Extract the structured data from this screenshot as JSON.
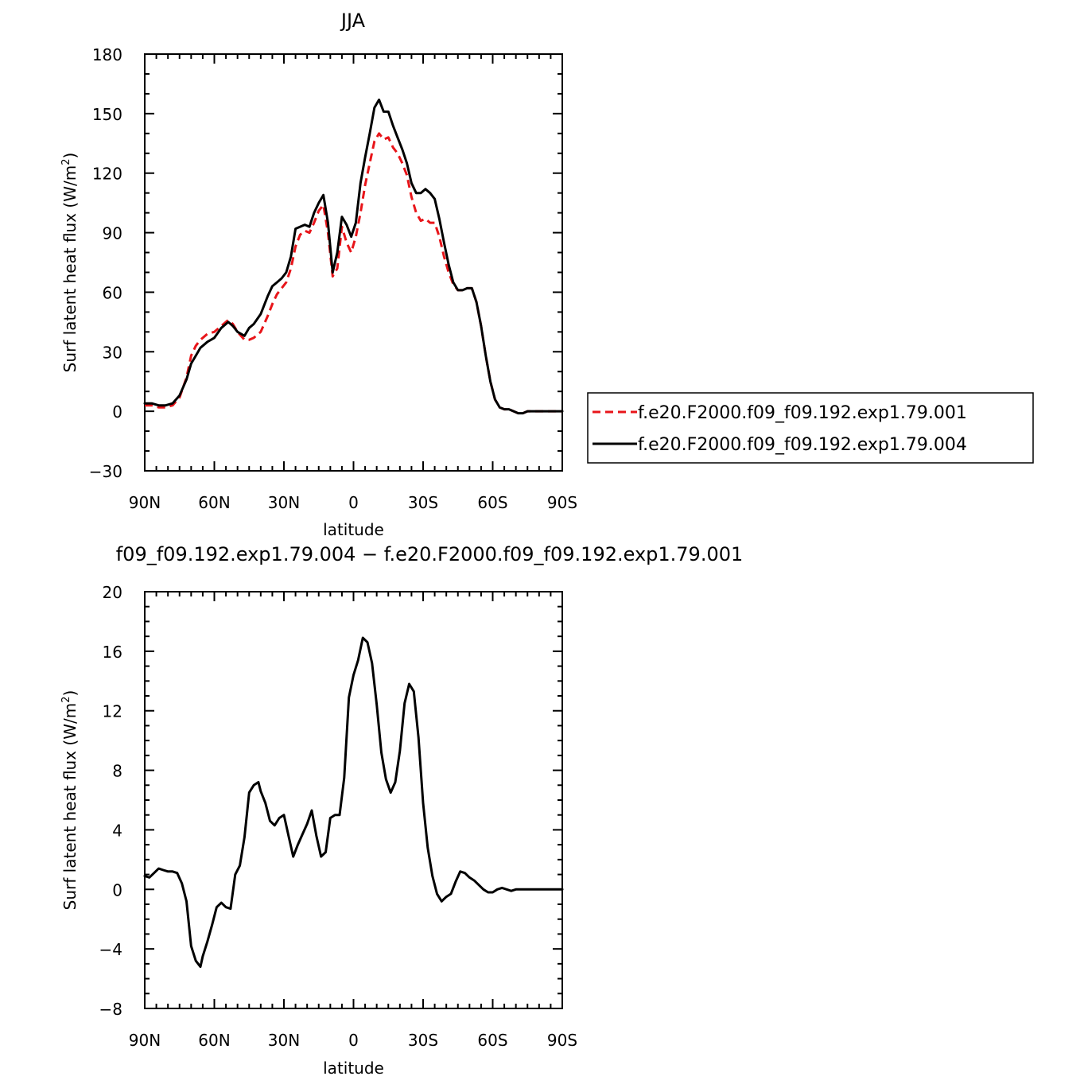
{
  "chart_data": [
    {
      "type": "line",
      "title": "JJA",
      "xlabel": "latitude",
      "ylabel_main": "Surf latent heat flux (W/m",
      "ylabel_sup": "2",
      "ylabel_close": ")",
      "xlim": [
        90,
        -90
      ],
      "ylim": [
        -30,
        180
      ],
      "xticks": [
        90,
        60,
        30,
        0,
        -30,
        -60,
        -90
      ],
      "xtick_labels": [
        "90N",
        "60N",
        "30N",
        "0",
        "30S",
        "60S",
        "90S"
      ],
      "yticks": [
        -30,
        0,
        30,
        60,
        90,
        120,
        150,
        180
      ],
      "ytick_labels": [
        "−30",
        "0",
        "30",
        "60",
        "90",
        "120",
        "150",
        "180"
      ],
      "grid": false,
      "legend_position": "right",
      "series": [
        {
          "name": "f.e20.F2000.f09_f09.192.exp1.79.001",
          "color": "#e8151a",
          "dash": "dashed",
          "x": [
            90,
            87,
            84,
            81,
            78,
            75,
            72,
            70,
            68,
            66,
            63,
            60,
            57,
            54,
            52,
            50,
            47,
            45,
            43,
            40,
            37,
            35,
            33,
            31,
            29,
            27,
            25,
            23,
            21,
            19,
            17,
            15,
            13,
            11,
            9,
            7,
            5,
            3,
            1,
            -1,
            -3,
            -5,
            -7,
            -9,
            -11,
            -13,
            -15,
            -17,
            -19,
            -21,
            -23,
            -25,
            -27,
            -29,
            -31,
            -33,
            -35,
            -37,
            -39,
            -41,
            -43,
            -45,
            -47,
            -49,
            -51,
            -53,
            -55,
            -57,
            -59,
            -61,
            -63,
            -65,
            -67,
            -69,
            -71,
            -73,
            -75,
            -77,
            -79,
            -81,
            -84,
            -87,
            -90
          ],
          "y": [
            3,
            3,
            2,
            2,
            3,
            7,
            17,
            28,
            33,
            36,
            39,
            40,
            43,
            46,
            44,
            40,
            36,
            36,
            37,
            40,
            48,
            54,
            59,
            62,
            65,
            72,
            83,
            89,
            91,
            90,
            95,
            101,
            104,
            90,
            68,
            72,
            93,
            85,
            80,
            88,
            100,
            114,
            125,
            136,
            140,
            137,
            138,
            133,
            130,
            125,
            119,
            108,
            100,
            96,
            97,
            95,
            95,
            88,
            78,
            70,
            64,
            61,
            61,
            62,
            62,
            55,
            43,
            28,
            15,
            6,
            2,
            1,
            1,
            0,
            -1,
            -1,
            0,
            0,
            0,
            0,
            0,
            0,
            0
          ]
        },
        {
          "name": "f.e20.F2000.f09_f09.192.exp1.79.004",
          "color": "#000000",
          "dash": "solid",
          "x": [
            90,
            87,
            84,
            81,
            78,
            75,
            72,
            70,
            68,
            66,
            63,
            60,
            57,
            54,
            52,
            50,
            47,
            45,
            43,
            40,
            37,
            35,
            33,
            31,
            29,
            27,
            25,
            23,
            21,
            19,
            17,
            15,
            13,
            11,
            9,
            7,
            5,
            3,
            1,
            -1,
            -3,
            -5,
            -7,
            -9,
            -11,
            -13,
            -15,
            -17,
            -19,
            -21,
            -23,
            -25,
            -27,
            -29,
            -31,
            -33,
            -35,
            -37,
            -39,
            -41,
            -43,
            -45,
            -47,
            -49,
            -51,
            -53,
            -55,
            -57,
            -59,
            -61,
            -63,
            -65,
            -67,
            -69,
            -71,
            -73,
            -75,
            -77,
            -79,
            -81,
            -84,
            -87,
            -90
          ],
          "y": [
            4,
            4,
            3,
            3,
            4,
            8,
            16,
            24,
            28,
            32,
            35,
            37,
            42,
            45,
            43,
            40,
            38,
            42,
            44,
            49,
            58,
            63,
            65,
            67,
            70,
            78,
            92,
            93,
            94,
            93,
            100,
            105,
            109,
            95,
            70,
            80,
            98,
            94,
            88,
            95,
            115,
            128,
            140,
            153,
            157,
            151,
            151,
            144,
            138,
            132,
            125,
            115,
            110,
            110,
            112,
            110,
            107,
            97,
            85,
            74,
            65,
            61,
            61,
            62,
            62,
            55,
            43,
            28,
            15,
            6,
            2,
            1,
            1,
            0,
            -1,
            -1,
            0,
            0,
            0,
            0,
            0,
            0,
            0
          ]
        }
      ]
    },
    {
      "type": "line",
      "title": "f09_f09.192.exp1.79.004 − f.e20.F2000.f09_f09.192.exp1.79.001",
      "xlabel": "latitude",
      "ylabel_main": "Surf latent heat flux (W/m",
      "ylabel_sup": "2",
      "ylabel_close": ")",
      "xlim": [
        90,
        -90
      ],
      "ylim": [
        -8,
        20
      ],
      "xticks": [
        90,
        60,
        30,
        0,
        -30,
        -60,
        -90
      ],
      "xtick_labels": [
        "90N",
        "60N",
        "30N",
        "0",
        "30S",
        "60S",
        "90S"
      ],
      "yticks": [
        -8,
        -4,
        0,
        4,
        8,
        12,
        16,
        20
      ],
      "ytick_labels": [
        "−8",
        "−4",
        "0",
        "4",
        "8",
        "12",
        "16",
        "20"
      ],
      "grid": false,
      "series": [
        {
          "color": "#000000",
          "dash": "solid",
          "x": [
            90,
            88,
            86,
            84,
            82,
            80,
            78,
            76,
            74,
            72,
            70,
            68,
            66,
            65,
            63,
            61,
            59,
            57,
            55,
            53,
            51,
            49,
            47,
            45,
            43,
            41,
            40,
            38,
            36,
            34,
            32,
            30,
            28,
            26,
            24,
            22,
            20,
            18,
            16,
            14,
            12,
            10,
            8,
            6,
            4,
            2,
            0,
            -2,
            -4,
            -6,
            -8,
            -10,
            -12,
            -14,
            -16,
            -18,
            -20,
            -22,
            -24,
            -26,
            -28,
            -30,
            -32,
            -34,
            -36,
            -38,
            -40,
            -42,
            -44,
            -46,
            -48,
            -50,
            -52,
            -54,
            -56,
            -58,
            -60,
            -62,
            -64,
            -66,
            -68,
            -70,
            -72,
            -74,
            -76,
            -78,
            -80,
            -82,
            -84,
            -86,
            -88,
            -90
          ],
          "y": [
            0.9,
            0.8,
            1.1,
            1.4,
            1.3,
            1.2,
            1.2,
            1.1,
            0.4,
            -0.8,
            -3.8,
            -4.8,
            -5.2,
            -4.5,
            -3.5,
            -2.4,
            -1.2,
            -0.9,
            -1.2,
            -1.3,
            1.0,
            1.6,
            3.5,
            6.5,
            7.0,
            7.2,
            6.6,
            5.8,
            4.6,
            4.3,
            4.8,
            5.0,
            3.6,
            2.2,
            3.0,
            3.7,
            4.4,
            5.3,
            3.6,
            2.2,
            2.5,
            4.8,
            5.0,
            5.0,
            7.5,
            12.9,
            14.4,
            15.4,
            16.9,
            16.6,
            15.2,
            12.4,
            9.2,
            7.4,
            6.5,
            7.2,
            9.3,
            12.5,
            13.8,
            13.3,
            10.2,
            5.8,
            2.8,
            0.9,
            -0.3,
            -0.8,
            -0.5,
            -0.3,
            0.5,
            1.2,
            1.1,
            0.8,
            0.6,
            0.3,
            0.0,
            -0.2,
            -0.2,
            0.0,
            0.1,
            0.0,
            -0.1,
            0.0,
            0.0,
            0.0,
            0.0,
            0.0,
            0.0,
            0.0,
            0.0,
            0.0,
            0.0,
            0.0
          ]
        }
      ]
    }
  ]
}
